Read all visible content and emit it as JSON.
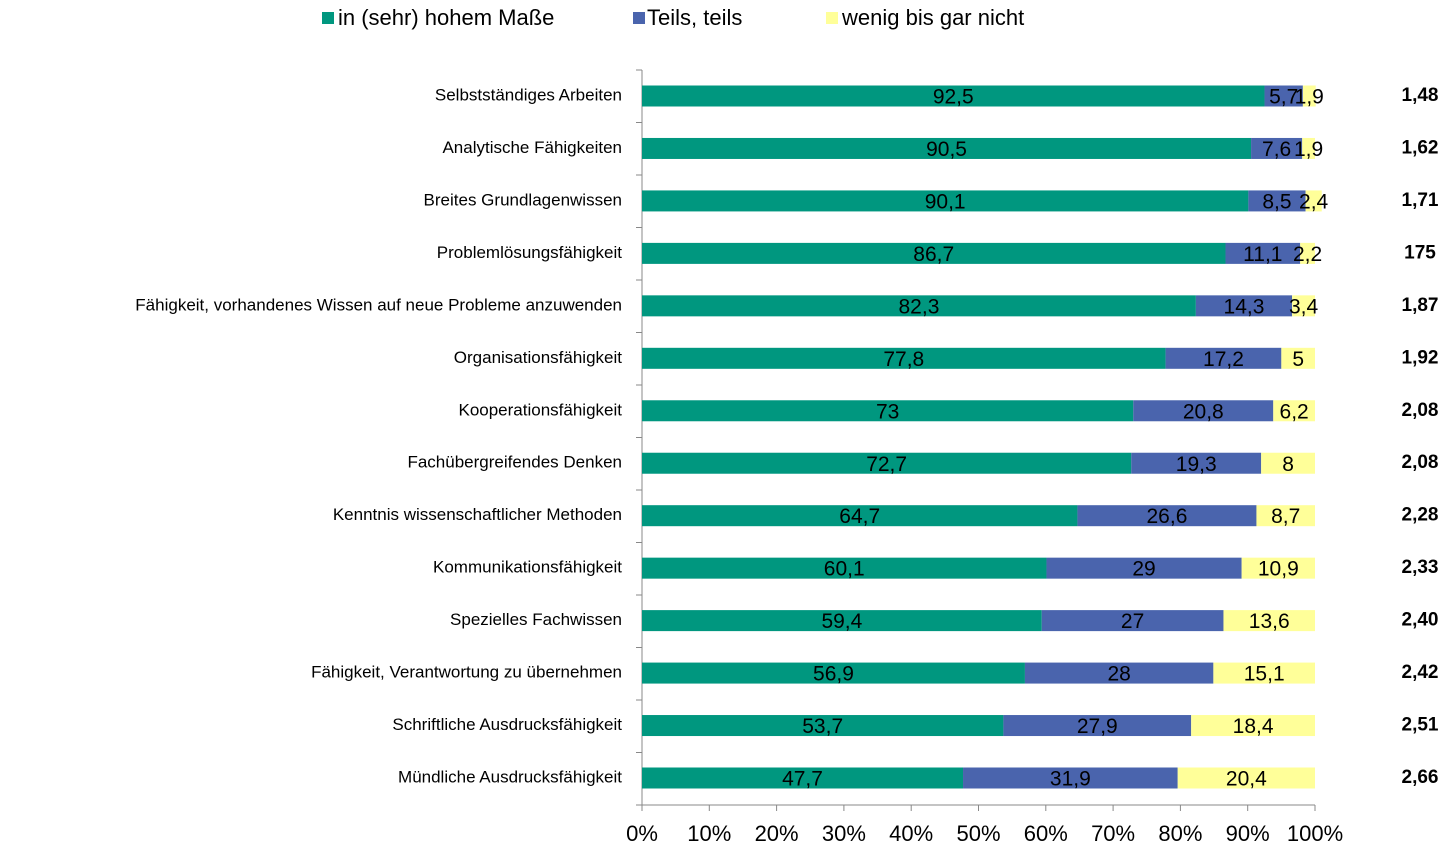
{
  "chart_data": {
    "type": "stacked_barh",
    "categories": [
      "Selbstständiges Arbeiten",
      "Analytische Fähigkeiten",
      "Breites Grundlagenwissen",
      "Problemlösungsfähigkeit",
      "Fähigkeit, vorhandenes Wissen auf neue Probleme anzuwenden",
      "Organisationsfähigkeit",
      "Kooperationsfähigkeit",
      "Fachübergreifendes Denken",
      "Kenntnis wissenschaftlicher Methoden",
      "Kommunikationsfähigkeit",
      "Spezielles Fachwissen",
      "Fähigkeit, Verantwortung zu übernehmen",
      "Schriftliche Ausdrucksfähigkeit",
      "Mündliche Ausdrucksfähigkeit"
    ],
    "series": [
      {
        "name": "in (sehr) hohem Maße",
        "color": "#00977f",
        "values": [
          92.5,
          90.5,
          90.1,
          86.7,
          82.3,
          77.8,
          73,
          72.7,
          64.7,
          60.1,
          59.4,
          56.9,
          53.7,
          47.7
        ],
        "value_labels": [
          "92,5",
          "90,5",
          "90,1",
          "86,7",
          "82,3",
          "77,8",
          "73",
          "72,7",
          "64,7",
          "60,1",
          "59,4",
          "56,9",
          "53,7",
          "47,7"
        ]
      },
      {
        "name": "Teils, teils",
        "color": "#4a64ad",
        "values": [
          5.7,
          7.6,
          8.5,
          11.1,
          14.3,
          17.2,
          20.8,
          19.3,
          26.6,
          29,
          27,
          28,
          27.9,
          31.9
        ],
        "value_labels": [
          "5,7",
          "7,6",
          "8,5",
          "11,1",
          "14,3",
          "17,2",
          "20,8",
          "19,3",
          "26,6",
          "29",
          "27",
          "28",
          "27,9",
          "31,9"
        ]
      },
      {
        "name": "wenig bis gar nicht",
        "color": "#ffff99",
        "values": [
          1.9,
          1.9,
          2.4,
          2.2,
          3.4,
          5,
          6.2,
          8,
          8.7,
          10.9,
          13.6,
          15.1,
          18.4,
          20.4
        ],
        "value_labels": [
          "1,9",
          "1,9",
          "2,4",
          "2,2",
          "3,4",
          "5",
          "6,2",
          "8",
          "8,7",
          "10,9",
          "13,6",
          "15,1",
          "18,4",
          "20,4"
        ]
      }
    ],
    "annotations": [
      "1,48",
      "1,62",
      "1,71",
      "175",
      "1,87",
      "1,92",
      "2,08",
      "2,08",
      "2,28",
      "2,33",
      "2,40",
      "2,42",
      "2,51",
      "2,66"
    ],
    "xlim": [
      0,
      100
    ],
    "xticks": [
      {
        "value": 0,
        "label": "0%"
      },
      {
        "value": 10,
        "label": "10%"
      },
      {
        "value": 20,
        "label": "20%"
      },
      {
        "value": 30,
        "label": "30%"
      },
      {
        "value": 40,
        "label": "40%"
      },
      {
        "value": 50,
        "label": "50%"
      },
      {
        "value": 60,
        "label": "60%"
      },
      {
        "value": 70,
        "label": "70%"
      },
      {
        "value": 80,
        "label": "80%"
      },
      {
        "value": 90,
        "label": "90%"
      },
      {
        "value": 100,
        "label": "100%"
      }
    ],
    "legend": "top"
  }
}
